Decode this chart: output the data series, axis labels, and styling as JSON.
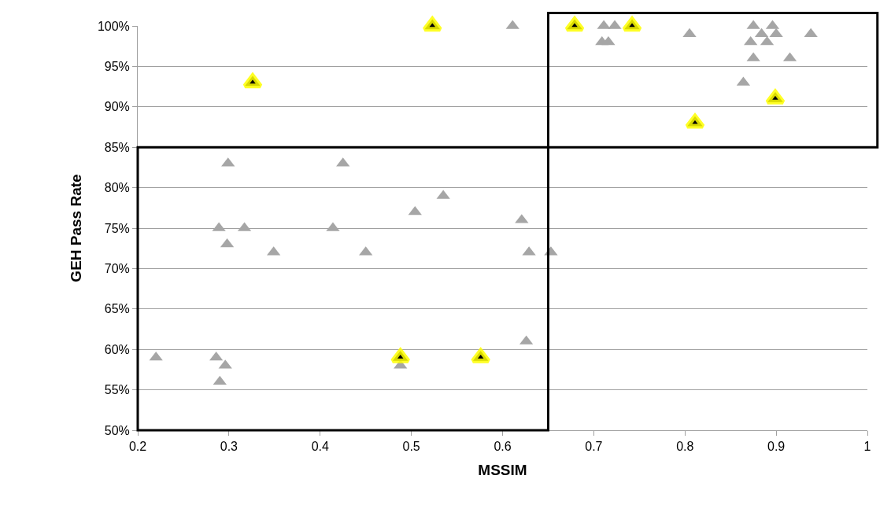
{
  "chart_data": {
    "type": "scatter",
    "xlabel": "MSSIM",
    "ylabel": "GEH Pass Rate",
    "xlim": [
      0.2,
      1
    ],
    "xticks": [
      0.2,
      0.3,
      0.4,
      0.5,
      0.6,
      0.7,
      0.8,
      0.9,
      1
    ],
    "ylim": [
      50,
      100
    ],
    "yticks": [
      {
        "value": 50,
        "label": "50%"
      },
      {
        "value": 55,
        "label": "55%"
      },
      {
        "value": 60,
        "label": "60%"
      },
      {
        "value": 65,
        "label": "65%"
      },
      {
        "value": 70,
        "label": "70%"
      },
      {
        "value": 75,
        "label": "75%"
      },
      {
        "value": 80,
        "label": "80%"
      },
      {
        "value": 85,
        "label": "85%"
      },
      {
        "value": 90,
        "label": "90%"
      },
      {
        "value": 95,
        "label": "95%"
      },
      {
        "value": 100,
        "label": "100%"
      }
    ],
    "grid": "y",
    "marker": "triangle",
    "series": [
      {
        "color": "#a6a6a6",
        "x": [
          0.299,
          0.425,
          0.535,
          0.504,
          0.611,
          0.711,
          0.723,
          0.709,
          0.716,
          0.805,
          0.875,
          0.884,
          0.896,
          0.9,
          0.938,
          0.872,
          0.89,
          0.875,
          0.915,
          0.864,
          0.289,
          0.317,
          0.298,
          0.349,
          0.414,
          0.45,
          0.621,
          0.629,
          0.653,
          0.22,
          0.286,
          0.296,
          0.29,
          0.488,
          0.626
        ],
        "values": [
          83,
          83,
          79,
          77,
          100,
          100,
          100,
          98,
          98,
          99,
          100,
          99,
          100,
          99,
          99,
          98,
          98,
          96,
          96,
          93,
          75,
          75,
          73,
          72,
          75,
          72,
          76,
          72,
          72,
          59,
          59,
          58,
          56,
          58,
          61
        ]
      },
      {
        "color": "#000000",
        "x": [
          0.523,
          0.326,
          0.679,
          0.742,
          0.899,
          0.811,
          0.488,
          0.576
        ],
        "values": [
          100,
          93,
          100,
          100,
          91,
          88,
          59,
          59
        ]
      }
    ]
  }
}
